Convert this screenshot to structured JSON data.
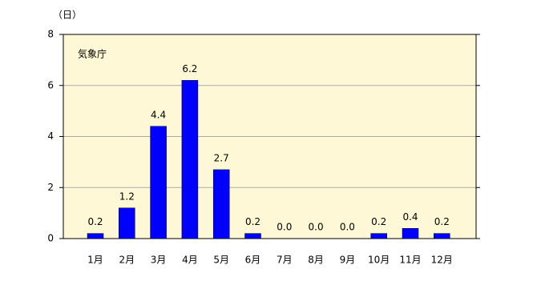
{
  "chart_data": {
    "type": "bar",
    "y_unit_label": "（日）",
    "annotation": "気象庁",
    "categories": [
      "1月",
      "2月",
      "3月",
      "4月",
      "5月",
      "6月",
      "7月",
      "8月",
      "9月",
      "10月",
      "11月",
      "12月"
    ],
    "values": [
      0.2,
      1.2,
      4.4,
      6.2,
      2.7,
      0.2,
      0,
      0,
      0,
      0.2,
      0.4,
      0.2
    ],
    "value_labels": [
      "0.2",
      "1.2",
      "4.4",
      "6.2",
      "2.7",
      "0.2",
      "0.0",
      "0.0",
      "0.0",
      "0.2",
      "0.4",
      "0.2"
    ],
    "color": "#0000ff",
    "ylim": [
      0,
      8
    ],
    "yticks": [
      0,
      2,
      4,
      6,
      8
    ],
    "grid": true
  }
}
